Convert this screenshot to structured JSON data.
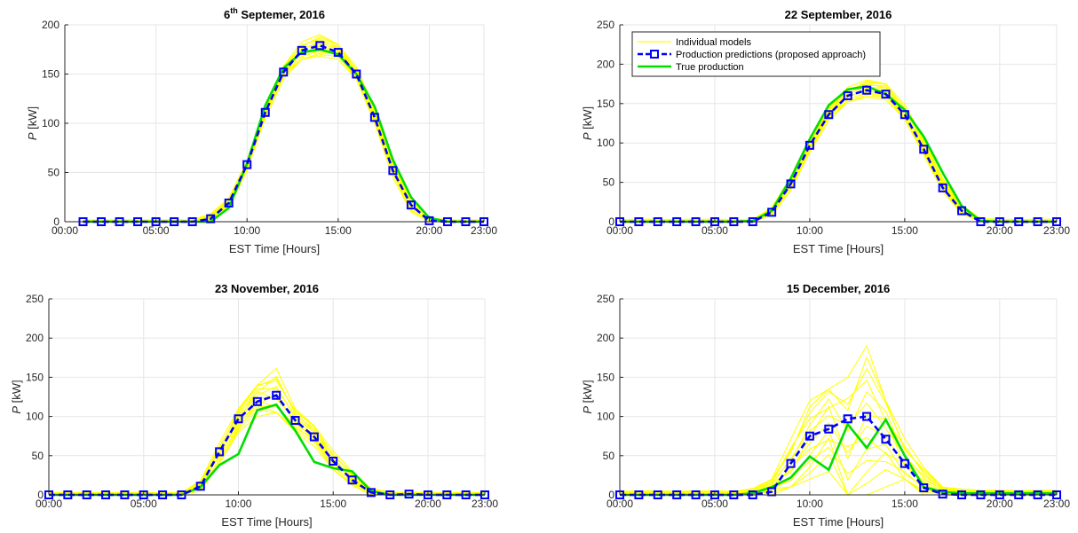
{
  "figure": {
    "colors": {
      "individual": "#ffff00",
      "prediction": "#0000ff",
      "truth": "#00dd00",
      "grid": "#e6e6e6",
      "axis": "#262626"
    }
  },
  "chart_data": [
    {
      "type": "line",
      "title": "6th Septemer, 2016",
      "title_parts": {
        "pre": "6",
        "sup": "th",
        "post": " Septemer, 2016"
      },
      "xlabel": "EST Time [Hours]",
      "ylabel": "P [kW]",
      "ylabel_parts": {
        "italic": "P",
        "rest": " [kW]"
      },
      "xlim": [
        0,
        23
      ],
      "ylim": [
        0,
        200
      ],
      "xticks": [
        0,
        5,
        10,
        15,
        20,
        23
      ],
      "xticklabels": [
        "00:00",
        "05:00",
        "10:00",
        "15:00",
        "20:00",
        "23:00"
      ],
      "yticks": [
        0,
        50,
        100,
        150,
        200
      ],
      "yticklabels": [
        "0",
        "50",
        "100",
        "150",
        "200"
      ],
      "grid": true,
      "legend": null,
      "x": [
        1,
        2,
        3,
        4,
        5,
        6,
        7,
        8,
        9,
        10,
        11,
        12,
        13,
        14,
        15,
        16,
        17,
        18,
        19,
        20,
        21,
        22,
        23
      ],
      "ensemble": {
        "name": "Individual models",
        "band_low": [
          0,
          0,
          0,
          0,
          0,
          0,
          0,
          2,
          14,
          52,
          105,
          145,
          165,
          168,
          165,
          145,
          100,
          45,
          10,
          0,
          0,
          0,
          0
        ],
        "band_high": [
          2,
          2,
          2,
          2,
          2,
          2,
          2,
          8,
          24,
          63,
          118,
          158,
          184,
          190,
          180,
          158,
          115,
          65,
          25,
          4,
          2,
          2,
          2
        ]
      },
      "series": [
        {
          "name": "Production predictions (proposed approach)",
          "values": [
            0,
            0,
            0,
            0,
            0,
            0,
            0,
            3,
            19,
            58,
            111,
            152,
            174,
            179,
            172,
            150,
            106,
            52,
            17,
            1,
            0,
            0,
            0
          ]
        },
        {
          "name": "True production",
          "values": [
            0,
            0,
            0,
            0,
            0,
            0,
            0,
            0,
            14,
            59,
            118,
            156,
            172,
            175,
            170,
            150,
            117,
            63,
            25,
            4,
            0,
            0,
            0
          ]
        }
      ]
    },
    {
      "type": "line",
      "title": "22 September, 2016",
      "title_parts": {
        "pre": "22 September, 2016",
        "sup": "",
        "post": ""
      },
      "xlabel": "EST Time [Hours]",
      "ylabel": "P [kW]",
      "ylabel_parts": {
        "italic": "P",
        "rest": " [kW]"
      },
      "xlim": [
        0,
        23
      ],
      "ylim": [
        0,
        250
      ],
      "xticks": [
        0,
        5,
        10,
        15,
        20,
        23
      ],
      "xticklabels": [
        "00:00",
        "05:00",
        "10:00",
        "15:00",
        "20:00",
        "23:00"
      ],
      "yticks": [
        0,
        50,
        100,
        150,
        200,
        250
      ],
      "yticklabels": [
        "0",
        "50",
        "100",
        "150",
        "200",
        "250"
      ],
      "grid": true,
      "legend": {
        "placement": "top-left",
        "entries": [
          "Individual models",
          "Production predictions (proposed approach)",
          "True production"
        ]
      },
      "x": [
        0,
        1,
        2,
        3,
        4,
        5,
        6,
        7,
        8,
        9,
        10,
        11,
        12,
        13,
        14,
        15,
        16,
        17,
        18,
        19,
        20,
        21,
        22,
        23
      ],
      "ensemble": {
        "name": "Individual models",
        "band_low": [
          0,
          0,
          0,
          0,
          0,
          0,
          0,
          0,
          8,
          40,
          88,
          128,
          152,
          158,
          155,
          130,
          85,
          38,
          10,
          0,
          0,
          0,
          0,
          0
        ],
        "band_high": [
          3,
          3,
          3,
          3,
          3,
          3,
          3,
          3,
          18,
          58,
          105,
          145,
          172,
          180,
          175,
          150,
          105,
          55,
          22,
          4,
          3,
          3,
          3,
          3
        ]
      },
      "series": [
        {
          "name": "Production predictions (proposed approach)",
          "values": [
            0,
            0,
            0,
            0,
            0,
            0,
            0,
            0,
            12,
            48,
            97,
            136,
            160,
            167,
            162,
            136,
            92,
            43,
            14,
            0,
            0,
            0,
            0,
            0
          ]
        },
        {
          "name": "True production",
          "values": [
            0,
            0,
            0,
            0,
            0,
            0,
            0,
            1,
            14,
            55,
            105,
            148,
            168,
            172,
            162,
            142,
            108,
            62,
            20,
            1,
            0,
            0,
            0,
            0
          ]
        }
      ]
    },
    {
      "type": "line",
      "title": "23 November, 2016",
      "title_parts": {
        "pre": "23 November, 2016",
        "sup": "",
        "post": ""
      },
      "xlabel": "EST Time [Hours]",
      "ylabel": "P [kW]",
      "ylabel_parts": {
        "italic": "P",
        "rest": " [kW]"
      },
      "xlim": [
        0,
        23
      ],
      "ylim": [
        0,
        250
      ],
      "xticks": [
        0,
        5,
        10,
        15,
        20,
        23
      ],
      "xticklabels": [
        "00:00",
        "05:00",
        "10:00",
        "15:00",
        "20:00",
        "23:00"
      ],
      "yticks": [
        0,
        50,
        100,
        150,
        200,
        250
      ],
      "yticklabels": [
        "0",
        "50",
        "100",
        "150",
        "200",
        "250"
      ],
      "grid": true,
      "legend": null,
      "x": [
        0,
        1,
        2,
        3,
        4,
        5,
        6,
        7,
        8,
        9,
        10,
        11,
        12,
        13,
        14,
        15,
        16,
        17,
        18,
        19,
        20,
        21,
        22,
        23
      ],
      "ensemble": {
        "name": "Individual models",
        "band_low": [
          0,
          0,
          0,
          0,
          0,
          0,
          0,
          0,
          5,
          40,
          80,
          100,
          105,
          80,
          62,
          32,
          12,
          0,
          0,
          0,
          0,
          0,
          0,
          0
        ],
        "band_high": [
          3,
          3,
          3,
          3,
          3,
          3,
          3,
          3,
          18,
          68,
          110,
          140,
          165,
          110,
          88,
          58,
          30,
          8,
          4,
          3,
          3,
          3,
          3,
          3
        ]
      },
      "series": [
        {
          "name": "Production predictions (proposed approach)",
          "values": [
            0,
            0,
            0,
            0,
            0,
            0,
            0,
            0,
            11,
            55,
            97,
            119,
            127,
            95,
            74,
            43,
            19,
            3,
            0,
            1,
            0,
            0,
            0,
            0
          ]
        },
        {
          "name": "True production",
          "values": [
            0,
            0,
            0,
            0,
            0,
            0,
            0,
            0,
            10,
            38,
            52,
            108,
            115,
            82,
            42,
            34,
            30,
            5,
            0,
            0,
            0,
            0,
            0,
            0
          ]
        }
      ]
    },
    {
      "type": "line",
      "title": "15 December, 2016",
      "title_parts": {
        "pre": "15 December, 2016",
        "sup": "",
        "post": ""
      },
      "xlabel": "EST Time [Hours]",
      "ylabel": "P [kW]",
      "ylabel_parts": {
        "italic": "P",
        "rest": " [kW]"
      },
      "xlim": [
        0,
        23
      ],
      "ylim": [
        0,
        250
      ],
      "xticks": [
        0,
        5,
        10,
        15,
        20,
        23
      ],
      "xticklabels": [
        "00:00",
        "05:00",
        "10:00",
        "15:00",
        "20:00",
        "23:00"
      ],
      "yticks": [
        0,
        50,
        100,
        150,
        200,
        250
      ],
      "yticklabels": [
        "0",
        "50",
        "100",
        "150",
        "200",
        "250"
      ],
      "grid": true,
      "legend": null,
      "x": [
        0,
        1,
        2,
        3,
        4,
        5,
        6,
        7,
        8,
        9,
        10,
        11,
        12,
        13,
        14,
        15,
        16,
        17,
        18,
        19,
        20,
        21,
        22,
        23
      ],
      "ensemble": {
        "name": "Individual models",
        "band_low": [
          0,
          0,
          0,
          0,
          0,
          0,
          0,
          0,
          0,
          10,
          20,
          30,
          0,
          0,
          10,
          20,
          0,
          0,
          0,
          0,
          0,
          0,
          0,
          0
        ],
        "band_high": [
          5,
          5,
          5,
          5,
          5,
          5,
          5,
          8,
          20,
          75,
          120,
          135,
          160,
          190,
          120,
          75,
          35,
          10,
          8,
          6,
          6,
          6,
          6,
          6
        ]
      },
      "series": [
        {
          "name": "Production predictions (proposed approach)",
          "values": [
            0,
            0,
            0,
            0,
            0,
            0,
            0,
            0,
            4,
            40,
            75,
            84,
            97,
            100,
            71,
            40,
            9,
            1,
            0,
            0,
            0,
            0,
            0,
            0
          ]
        },
        {
          "name": "True production",
          "values": [
            0,
            0,
            0,
            0,
            0,
            0,
            0,
            2,
            10,
            22,
            49,
            32,
            90,
            60,
            96,
            50,
            10,
            4,
            2,
            2,
            2,
            2,
            2,
            2
          ]
        }
      ]
    }
  ]
}
